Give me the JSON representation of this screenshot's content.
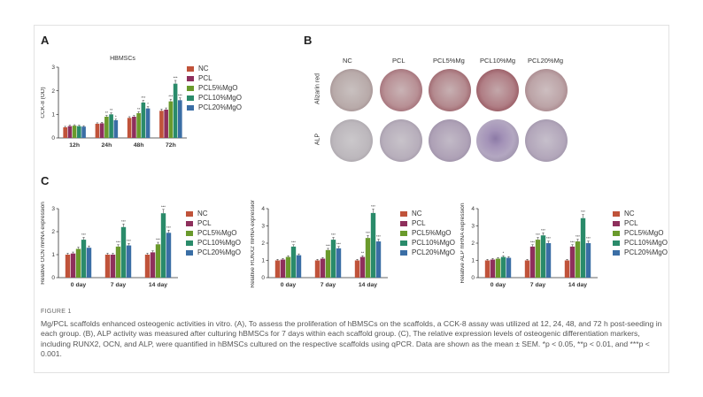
{
  "panels": {
    "A": "A",
    "B": "B",
    "C": "C"
  },
  "colors": {
    "NC": "#c0533a",
    "PCL": "#8e2f5c",
    "PCL5%MgO": "#6a9a2c",
    "PCL10%MgO": "#2a8b6a",
    "PCL20%MgO": "#3a6ea5"
  },
  "chart_data": [
    {
      "type": "bar",
      "title": "HBMSCs",
      "ylabel": "CCK-8 (OD)",
      "xlabel": "",
      "categories": [
        "12h",
        "24h",
        "48h",
        "72h"
      ],
      "ylim": [
        0,
        3
      ],
      "yticks": [
        "0",
        "1",
        "2",
        "3"
      ],
      "series": [
        {
          "name": "NC",
          "values": [
            0.45,
            0.6,
            0.85,
            1.15
          ],
          "sig": [
            "",
            "",
            "",
            ""
          ]
        },
        {
          "name": "PCL",
          "values": [
            0.5,
            0.62,
            0.9,
            1.2
          ],
          "sig": [
            "",
            "",
            "",
            ""
          ]
        },
        {
          "name": "PCL5%MgO",
          "values": [
            0.52,
            0.9,
            1.05,
            1.55
          ],
          "sig": [
            "",
            "**",
            "**",
            "***"
          ]
        },
        {
          "name": "PCL10%MgO",
          "values": [
            0.5,
            1.0,
            1.5,
            2.3
          ],
          "sig": [
            "",
            "**",
            "***",
            "***"
          ]
        },
        {
          "name": "PCL20%MgO",
          "values": [
            0.48,
            0.75,
            1.25,
            1.6
          ],
          "sig": [
            "",
            "*",
            "*",
            "***"
          ]
        }
      ]
    },
    {
      "type": "bar",
      "title": "",
      "ylabel": "Relative OCN mRNA expression",
      "xlabel": "",
      "categories": [
        "0 day",
        "7 day",
        "14 day"
      ],
      "ylim": [
        0,
        3
      ],
      "yticks": [
        "0",
        "1",
        "2",
        "3"
      ],
      "series": [
        {
          "name": "NC",
          "values": [
            1.0,
            1.0,
            1.0
          ],
          "sig": [
            "",
            "",
            ""
          ]
        },
        {
          "name": "PCL",
          "values": [
            1.05,
            1.0,
            1.1
          ],
          "sig": [
            "",
            "",
            ""
          ]
        },
        {
          "name": "PCL5%MgO",
          "values": [
            1.25,
            1.35,
            1.45
          ],
          "sig": [
            "",
            "***",
            "***"
          ]
        },
        {
          "name": "PCL10%MgO",
          "values": [
            1.65,
            2.2,
            2.8
          ],
          "sig": [
            "***",
            "***",
            "***"
          ]
        },
        {
          "name": "PCL20%MgO",
          "values": [
            1.3,
            1.4,
            1.95
          ],
          "sig": [
            "",
            "***",
            "***"
          ]
        }
      ]
    },
    {
      "type": "bar",
      "title": "",
      "ylabel": "Relative RUNX2 mRNA expression",
      "xlabel": "",
      "categories": [
        "0 day",
        "7 day",
        "14 day"
      ],
      "ylim": [
        0,
        4
      ],
      "yticks": [
        "0",
        "1",
        "2",
        "3",
        "4"
      ],
      "series": [
        {
          "name": "NC",
          "values": [
            1.0,
            1.0,
            1.0
          ],
          "sig": [
            "",
            "",
            ""
          ]
        },
        {
          "name": "PCL",
          "values": [
            1.05,
            1.1,
            1.2
          ],
          "sig": [
            "",
            "",
            "**"
          ]
        },
        {
          "name": "PCL5%MgO",
          "values": [
            1.2,
            1.6,
            2.3
          ],
          "sig": [
            "",
            "***",
            "***"
          ]
        },
        {
          "name": "PCL10%MgO",
          "values": [
            1.8,
            2.2,
            3.75
          ],
          "sig": [
            "***",
            "***",
            "***"
          ]
        },
        {
          "name": "PCL20%MgO",
          "values": [
            1.3,
            1.7,
            2.1
          ],
          "sig": [
            "",
            "***",
            "***"
          ]
        }
      ]
    },
    {
      "type": "bar",
      "title": "",
      "ylabel": "Relative ALP mRNA expression",
      "xlabel": "",
      "categories": [
        "0 day",
        "7 day",
        "14 day"
      ],
      "ylim": [
        0,
        4
      ],
      "yticks": [
        "0",
        "1",
        "2",
        "3",
        "4"
      ],
      "series": [
        {
          "name": "NC",
          "values": [
            1.0,
            1.0,
            1.0
          ],
          "sig": [
            "",
            "",
            ""
          ]
        },
        {
          "name": "PCL",
          "values": [
            1.05,
            1.8,
            1.8
          ],
          "sig": [
            "",
            "***",
            "***"
          ]
        },
        {
          "name": "PCL5%MgO",
          "values": [
            1.1,
            2.2,
            2.1
          ],
          "sig": [
            "",
            "***",
            "***"
          ]
        },
        {
          "name": "PCL10%MgO",
          "values": [
            1.2,
            2.45,
            3.45
          ],
          "sig": [
            "*",
            "***",
            "***"
          ]
        },
        {
          "name": "PCL20%MgO",
          "values": [
            1.15,
            2.0,
            2.0
          ],
          "sig": [
            "",
            "***",
            "***"
          ]
        }
      ]
    }
  ],
  "legend_a": [
    "NC",
    "PCL",
    "PCL5%MgO",
    "PCL10%MgO",
    "PCL20%MgO"
  ],
  "legend_c": [
    "NC",
    "PCL",
    "PCL5%MgO",
    "PCL10%MgO",
    "PCL20%MgO"
  ],
  "panel_b": {
    "columns": [
      "NC",
      "PCL",
      "PCL5%Mg",
      "PCL10%Mg",
      "PCL20%Mg"
    ],
    "rows": [
      "Alizarin red",
      "ALP"
    ]
  },
  "caption": {
    "figure_label": "FIGURE 1",
    "text": "Mg/PCL scaffolds enhanced osteogenic activities in vitro. (A), To assess the proliferation of hBMSCs on the scaffolds, a CCK-8 assay was utilized at 12, 24, 48, and 72 h post-seeding in each group. (B), ALP activity was measured after culturing hBMSCs for 7 days within each scaffold group. (C), The relative expression levels of osteogenic differentiation markers, including RUNX2, OCN, and ALP, were quantified in hBMSCs cultured on the respective scaffolds using qPCR. Data are shown as the mean ± SEM. *p < 0.05, **p < 0.01, and ***p < 0.001."
  }
}
